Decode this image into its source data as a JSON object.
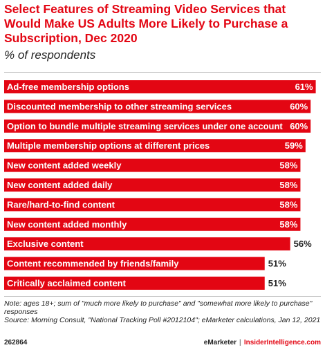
{
  "header": {
    "title": "Select Features of Streaming Video Services that Would Make US Adults More Likely to Purchase a Subscription, Dec 2020",
    "subtitle": "% of respondents"
  },
  "colors": {
    "bar": "#e30613",
    "inside_text": "#ffffff",
    "outside_text": "#222222"
  },
  "chart_data": {
    "type": "bar",
    "orientation": "horizontal",
    "title": "Select Features of Streaming Video Services that Would Make US Adults More Likely to Purchase a Subscription, Dec 2020",
    "subtitle": "% of respondents",
    "categories": [
      "Ad-free membership options",
      "Discounted membership to other streaming services",
      "Option to bundle multiple streaming services under one account",
      "Multiple membership options at different prices",
      "New content added weekly",
      "New content added daily",
      "Rare/hard-to-find content",
      "New content added monthly",
      "Exclusive content",
      "Content recommended by friends/family",
      "Critically acclaimed content"
    ],
    "values": [
      61,
      60,
      60,
      59,
      58,
      58,
      58,
      58,
      56,
      51,
      51
    ],
    "value_labels": [
      "61%",
      "60%",
      "60%",
      "59%",
      "58%",
      "58%",
      "58%",
      "58%",
      "56%",
      "51%",
      "51%"
    ],
    "grid": false
  },
  "footer": {
    "note": "Note: ages 18+; sum of \"much more likely to purchase\" and \"somewhat more likely to purchase\" responses",
    "source": "Source: Morning Consult, \"National Tracking Poll #2012104\"; eMarketer calculations, Jan 12, 2021",
    "chart_id": "262864",
    "brand_left": "eMarketer",
    "brand_separator": "|",
    "brand_right": "InsiderIntelligence.com"
  }
}
